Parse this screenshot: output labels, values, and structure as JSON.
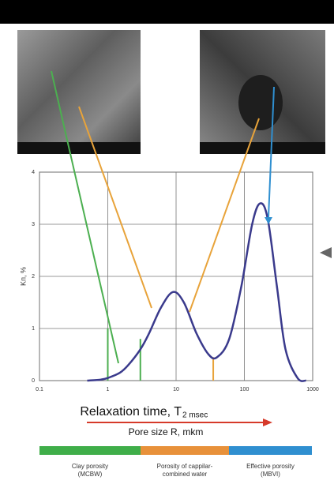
{
  "chart_data": {
    "type": "line",
    "x": [
      0.5,
      0.8,
      1,
      1.5,
      2,
      3,
      4,
      6,
      9,
      13,
      20,
      30,
      40,
      60,
      90,
      130,
      170,
      220,
      300,
      400,
      600,
      800
    ],
    "series": [
      {
        "color": "#3a3a8c",
        "values": [
          0,
          0.02,
          0.05,
          0.15,
          0.3,
          0.6,
          0.9,
          1.4,
          1.7,
          1.5,
          0.9,
          0.5,
          0.45,
          0.8,
          1.8,
          3.0,
          3.4,
          3.1,
          1.8,
          0.6,
          0.05,
          0
        ]
      }
    ],
    "vlines": [
      {
        "x": 1,
        "top": 1.0,
        "color": "#4caf50"
      },
      {
        "x": 3,
        "top": 0.8,
        "color": "#4caf50"
      },
      {
        "x": 35,
        "top": 0.45,
        "color": "#e8a33a"
      }
    ],
    "log_x": true,
    "xlim": [
      0.1,
      1000
    ],
    "xticks": [
      0.1,
      1,
      10,
      100,
      1000
    ],
    "ylim": [
      0,
      4
    ],
    "yticks": [
      0,
      1,
      2,
      3,
      4
    ],
    "grid": true,
    "ylabel": "Kп, %",
    "xlabel": "Relaxation time, T",
    "xlabel_subscript": "2 msec",
    "xlabel2": "Pore size R, mkm",
    "zones": [
      {
        "color": "#3fae49",
        "lines": [
          "Clay porosity",
          "(MCBW)"
        ]
      },
      {
        "color": "#e8913a",
        "lines": [
          "Porosity of cappilar-",
          "combined water"
        ]
      },
      {
        "color": "#2f8fd0",
        "lines": [
          "Effective porosity",
          "(MBVI)"
        ]
      }
    ]
  }
}
